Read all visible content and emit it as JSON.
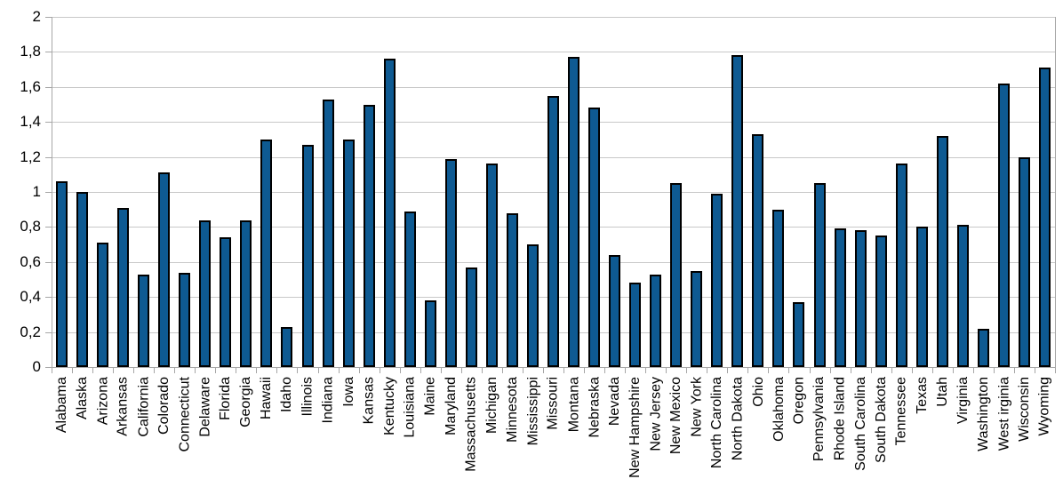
{
  "chart_data": {
    "type": "bar",
    "title": "",
    "xlabel": "",
    "ylabel": "",
    "categories": [
      "Alabama",
      "Alaska",
      "Arizona",
      "Arkansas",
      "California",
      "Colorado",
      "Connecticut",
      "Delaware",
      "Florida",
      "Georgia",
      "Hawaii",
      "Idaho",
      "Illinois",
      "Indiana",
      "Iowa",
      "Kansas",
      "Kentucky",
      "Louisiana",
      "Maine",
      "Maryland",
      "Massachusetts",
      "Michigan",
      "Minnesota",
      "Mississippi",
      "Missouri",
      "Montana",
      "Nebraska",
      "Nevada",
      "New Hampshire",
      "New Jersey",
      "New Mexico",
      "New York",
      "North Carolina",
      "North Dakota",
      "Ohio",
      "Oklahoma",
      "Oregon",
      "Pennsylvania",
      "Rhode Island",
      "South Carolina",
      "South Dakota",
      "Tennessee",
      "Texas",
      "Utah",
      "Virginia",
      "Washington",
      "West irginia",
      "Wisconsin",
      "Wyoming"
    ],
    "values": [
      1.06,
      1.0,
      0.71,
      0.91,
      0.53,
      1.11,
      0.54,
      0.84,
      0.74,
      0.84,
      1.3,
      0.23,
      1.27,
      1.53,
      1.3,
      1.5,
      1.76,
      0.89,
      0.38,
      1.19,
      0.57,
      1.16,
      0.88,
      0.7,
      1.55,
      1.77,
      1.48,
      0.64,
      0.48,
      0.53,
      1.05,
      0.55,
      0.99,
      1.78,
      1.33,
      0.9,
      0.37,
      1.05,
      0.79,
      0.78,
      0.75,
      1.16,
      0.8,
      1.32,
      0.81,
      0.22,
      1.62,
      1.2,
      1.71
    ],
    "ylim": [
      0,
      2
    ],
    "ytick_step": 0.2,
    "yticklabels": [
      "0",
      "0,2",
      "0,4",
      "0,6",
      "0,8",
      "1",
      "1,2",
      "1,4",
      "1,6",
      "1,8",
      "2"
    ],
    "decimal_separator": ",",
    "grid": true,
    "legend_position": "none",
    "colors": {
      "bar_fill": "#0e5a92",
      "bar_border": "#000000",
      "gridline": "#c8c8c8",
      "axis": "#a6a6a6",
      "text": "#000000",
      "background": "#ffffff"
    }
  }
}
